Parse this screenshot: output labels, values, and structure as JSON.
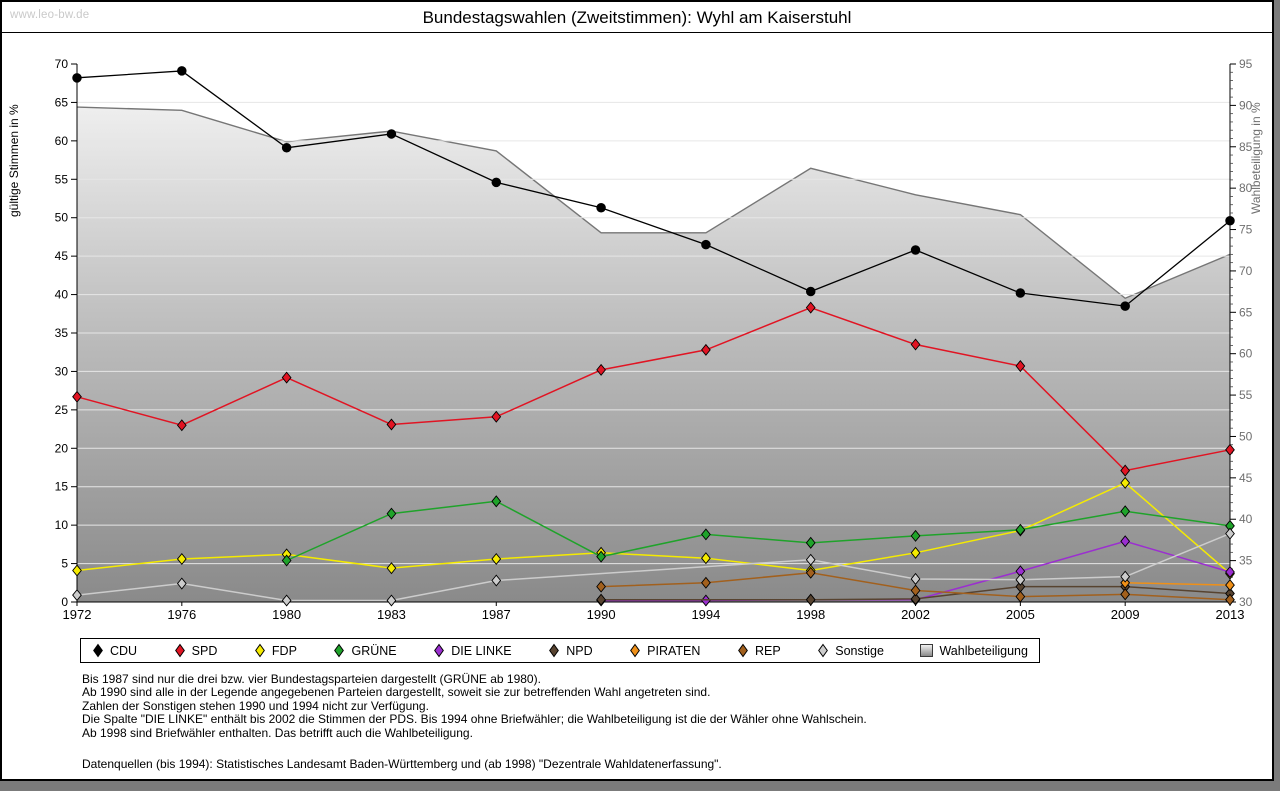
{
  "header": {
    "watermark": "www.leo-bw.de",
    "title": "Bundestagswahlen (Zweitstimmen): Wyhl am Kaiserstuhl"
  },
  "chart_data": {
    "type": "line",
    "title": "Bundestagswahlen (Zweitstimmen): Wyhl am Kaiserstuhl",
    "categories": [
      "1972",
      "1976",
      "1980",
      "1983",
      "1987",
      "1990",
      "1994",
      "1998",
      "2002",
      "2005",
      "2009",
      "2013"
    ],
    "y_left": {
      "label": "gültige Stimmen in %",
      "min": 0,
      "max": 70,
      "step": 5
    },
    "y_right": {
      "label": "Wahlbeteiligung in %",
      "min": 30,
      "max": 95,
      "step": 5
    },
    "grid": true,
    "legend_position": "bottom",
    "series": [
      {
        "name": "CDU",
        "axis": "left",
        "type": "line",
        "marker": "circle",
        "color": "#000000",
        "values": [
          68.2,
          69.1,
          59.1,
          60.9,
          54.6,
          51.3,
          46.5,
          40.4,
          45.8,
          40.2,
          38.5,
          49.6
        ]
      },
      {
        "name": "SPD",
        "axis": "left",
        "type": "line",
        "marker": "diamond",
        "color": "#e11423",
        "values": [
          26.7,
          23.0,
          29.2,
          23.1,
          24.1,
          30.2,
          32.8,
          38.3,
          33.5,
          30.7,
          17.1,
          19.8
        ]
      },
      {
        "name": "FDP",
        "axis": "left",
        "type": "line",
        "marker": "diamond",
        "color": "#f5eb00",
        "values": [
          4.1,
          5.6,
          6.2,
          4.4,
          5.6,
          6.4,
          5.7,
          4.1,
          6.4,
          9.3,
          15.5,
          3.7
        ]
      },
      {
        "name": "GRÜNE",
        "axis": "left",
        "type": "line",
        "marker": "diamond",
        "color": "#1fa32a",
        "values": [
          null,
          null,
          5.4,
          11.5,
          13.1,
          5.9,
          8.8,
          7.7,
          8.6,
          9.4,
          11.8,
          9.9
        ]
      },
      {
        "name": "DIE LINKE",
        "axis": "left",
        "type": "line",
        "marker": "diamond",
        "color": "#9b2fd0",
        "values": [
          null,
          null,
          null,
          null,
          null,
          0.2,
          0.2,
          0.3,
          0.3,
          4.0,
          7.9,
          3.9
        ]
      },
      {
        "name": "NPD",
        "axis": "left",
        "type": "line",
        "marker": "diamond",
        "color": "#574330",
        "values": [
          null,
          null,
          null,
          null,
          null,
          0.3,
          null,
          0.3,
          0.4,
          2.0,
          2.0,
          1.1
        ]
      },
      {
        "name": "PIRATEN",
        "axis": "left",
        "type": "line",
        "marker": "diamond",
        "color": "#ef9018",
        "values": [
          null,
          null,
          null,
          null,
          null,
          null,
          null,
          null,
          null,
          null,
          2.5,
          2.2
        ]
      },
      {
        "name": "REP",
        "axis": "left",
        "type": "line",
        "marker": "diamond",
        "color": "#a2601d",
        "values": [
          null,
          null,
          null,
          null,
          null,
          2.0,
          2.5,
          3.8,
          1.5,
          0.7,
          1.0,
          0.3
        ]
      },
      {
        "name": "Sonstige",
        "axis": "left",
        "type": "line",
        "marker": "diamond",
        "color": "#cccccc",
        "values": [
          0.9,
          2.4,
          0.2,
          0.2,
          2.8,
          null,
          null,
          5.5,
          3.0,
          2.9,
          3.3,
          8.9
        ]
      },
      {
        "name": "Wahlbeteiligung",
        "axis": "right",
        "type": "area",
        "marker": "none",
        "color": "#7b7b7b",
        "fill_top": "#f8f8f8",
        "fill_mid": "#bcbcbc",
        "fill_bottom": "#8a8a8a",
        "values": [
          89.8,
          89.4,
          85.6,
          86.9,
          84.5,
          74.6,
          74.6,
          82.4,
          79.2,
          76.8,
          66.7,
          72.0
        ]
      }
    ]
  },
  "footnotes": {
    "lines": [
      "Bis 1987 sind nur die drei bzw. vier Bundestagsparteien dargestellt (GRÜNE ab 1980).",
      "Ab 1990 sind alle in der Legende angegebenen Parteien dargestellt, soweit sie zur betreffenden Wahl angetreten sind.",
      "Zahlen der Sonstigen stehen 1990 und 1994 nicht zur Verfügung.",
      "Die Spalte \"DIE LINKE\" enthält bis 2002 die Stimmen der PDS. Bis 1994 ohne Briefwähler; die Wahlbeteiligung ist die der Wähler ohne Wahlschein.",
      "Ab 1998 sind Briefwähler enthalten. Das betrifft auch die Wahlbeteiligung."
    ],
    "source": "Datenquellen (bis 1994): Statistisches Landesamt Baden-Württemberg und (ab 1998) \"Dezentrale Wahldatenerfassung\"."
  }
}
